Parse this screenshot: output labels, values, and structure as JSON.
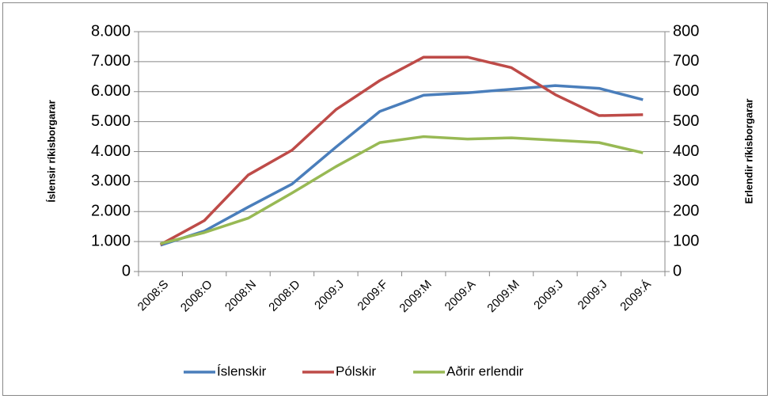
{
  "chart_data": {
    "type": "line",
    "y_label": "Íslensir ríkisborgarar",
    "y2_label": "Erlendir ríkisborgarar",
    "categories": [
      "2008:S",
      "2008:O",
      "2008:N",
      "2008:D",
      "2009:J",
      "2009:F",
      "2009:M",
      "2009:A",
      "2009:M",
      "2009:J",
      "2009:J",
      "2009:Á"
    ],
    "series": [
      {
        "name": "Íslenskir",
        "color": "#4a7ebb",
        "axis": "y",
        "values": [
          880,
          1350,
          2150,
          2920,
          4150,
          5340,
          5880,
          5960,
          6080,
          6200,
          6110,
          5730
        ]
      },
      {
        "name": "Pólskir",
        "color": "#be4b48",
        "axis": "y2",
        "values": [
          90,
          170,
          322,
          405,
          540,
          637,
          715,
          715,
          680,
          590,
          520,
          523
        ]
      },
      {
        "name": "Aðrir erlendir",
        "color": "#98b954",
        "axis": "y2",
        "values": [
          93,
          130,
          178,
          262,
          350,
          430,
          450,
          442,
          446,
          438,
          430,
          396
        ]
      }
    ],
    "ylim": [
      0,
      8000
    ],
    "yticks": [
      0,
      {
        "value": 1000,
        "label": "1.000"
      },
      {
        "value": 2000,
        "label": "2.000"
      },
      {
        "value": 3000,
        "label": "3.000"
      },
      {
        "value": 4000,
        "label": "4.000"
      },
      {
        "value": 5000,
        "label": "5.000"
      },
      {
        "value": 6000,
        "label": "6.000"
      },
      {
        "value": 7000,
        "label": "7.000"
      },
      {
        "value": 8000,
        "label": "8.000"
      }
    ],
    "y2lim": [
      0,
      800
    ],
    "y2ticks": [
      0,
      100,
      200,
      300,
      400,
      500,
      600,
      700,
      800
    ],
    "grid": true,
    "legend": "bottom"
  }
}
